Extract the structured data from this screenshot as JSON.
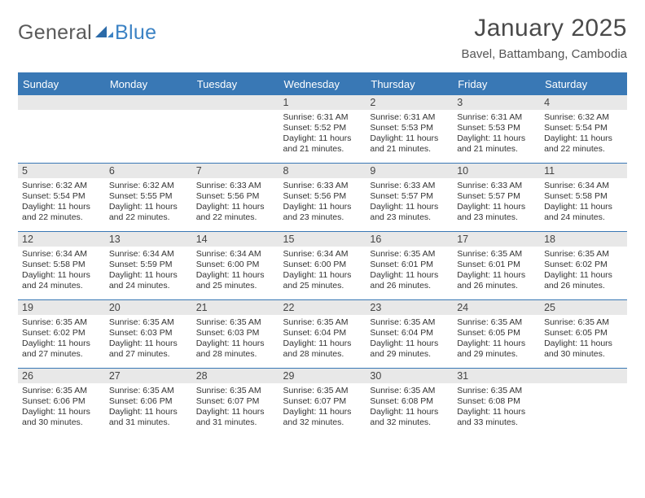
{
  "logo": {
    "word1": "General",
    "word2": "Blue"
  },
  "title": "January 2025",
  "location": "Bavel, Battambang, Cambodia",
  "colors": {
    "header_bg": "#3978b5",
    "daynum_bg": "#e8e8e8",
    "text_light": "#ffffff",
    "text_body": "#333333",
    "logo_gray": "#5a5a5a",
    "logo_blue": "#3b82c4",
    "background": "#ffffff"
  },
  "fonts": {
    "title_size_pt": 22,
    "location_size_pt": 11,
    "header_size_pt": 10,
    "daynum_size_pt": 9.5,
    "body_size_pt": 8
  },
  "weekday_labels": [
    "Sunday",
    "Monday",
    "Tuesday",
    "Wednesday",
    "Thursday",
    "Friday",
    "Saturday"
  ],
  "weeks": [
    [
      {
        "empty": true
      },
      {
        "empty": true
      },
      {
        "empty": true
      },
      {
        "num": "1",
        "sunrise": "Sunrise: 6:31 AM",
        "sunset": "Sunset: 5:52 PM",
        "dl1": "Daylight: 11 hours",
        "dl2": "and 21 minutes."
      },
      {
        "num": "2",
        "sunrise": "Sunrise: 6:31 AM",
        "sunset": "Sunset: 5:53 PM",
        "dl1": "Daylight: 11 hours",
        "dl2": "and 21 minutes."
      },
      {
        "num": "3",
        "sunrise": "Sunrise: 6:31 AM",
        "sunset": "Sunset: 5:53 PM",
        "dl1": "Daylight: 11 hours",
        "dl2": "and 21 minutes."
      },
      {
        "num": "4",
        "sunrise": "Sunrise: 6:32 AM",
        "sunset": "Sunset: 5:54 PM",
        "dl1": "Daylight: 11 hours",
        "dl2": "and 22 minutes."
      }
    ],
    [
      {
        "num": "5",
        "sunrise": "Sunrise: 6:32 AM",
        "sunset": "Sunset: 5:54 PM",
        "dl1": "Daylight: 11 hours",
        "dl2": "and 22 minutes."
      },
      {
        "num": "6",
        "sunrise": "Sunrise: 6:32 AM",
        "sunset": "Sunset: 5:55 PM",
        "dl1": "Daylight: 11 hours",
        "dl2": "and 22 minutes."
      },
      {
        "num": "7",
        "sunrise": "Sunrise: 6:33 AM",
        "sunset": "Sunset: 5:56 PM",
        "dl1": "Daylight: 11 hours",
        "dl2": "and 22 minutes."
      },
      {
        "num": "8",
        "sunrise": "Sunrise: 6:33 AM",
        "sunset": "Sunset: 5:56 PM",
        "dl1": "Daylight: 11 hours",
        "dl2": "and 23 minutes."
      },
      {
        "num": "9",
        "sunrise": "Sunrise: 6:33 AM",
        "sunset": "Sunset: 5:57 PM",
        "dl1": "Daylight: 11 hours",
        "dl2": "and 23 minutes."
      },
      {
        "num": "10",
        "sunrise": "Sunrise: 6:33 AM",
        "sunset": "Sunset: 5:57 PM",
        "dl1": "Daylight: 11 hours",
        "dl2": "and 23 minutes."
      },
      {
        "num": "11",
        "sunrise": "Sunrise: 6:34 AM",
        "sunset": "Sunset: 5:58 PM",
        "dl1": "Daylight: 11 hours",
        "dl2": "and 24 minutes."
      }
    ],
    [
      {
        "num": "12",
        "sunrise": "Sunrise: 6:34 AM",
        "sunset": "Sunset: 5:58 PM",
        "dl1": "Daylight: 11 hours",
        "dl2": "and 24 minutes."
      },
      {
        "num": "13",
        "sunrise": "Sunrise: 6:34 AM",
        "sunset": "Sunset: 5:59 PM",
        "dl1": "Daylight: 11 hours",
        "dl2": "and 24 minutes."
      },
      {
        "num": "14",
        "sunrise": "Sunrise: 6:34 AM",
        "sunset": "Sunset: 6:00 PM",
        "dl1": "Daylight: 11 hours",
        "dl2": "and 25 minutes."
      },
      {
        "num": "15",
        "sunrise": "Sunrise: 6:34 AM",
        "sunset": "Sunset: 6:00 PM",
        "dl1": "Daylight: 11 hours",
        "dl2": "and 25 minutes."
      },
      {
        "num": "16",
        "sunrise": "Sunrise: 6:35 AM",
        "sunset": "Sunset: 6:01 PM",
        "dl1": "Daylight: 11 hours",
        "dl2": "and 26 minutes."
      },
      {
        "num": "17",
        "sunrise": "Sunrise: 6:35 AM",
        "sunset": "Sunset: 6:01 PM",
        "dl1": "Daylight: 11 hours",
        "dl2": "and 26 minutes."
      },
      {
        "num": "18",
        "sunrise": "Sunrise: 6:35 AM",
        "sunset": "Sunset: 6:02 PM",
        "dl1": "Daylight: 11 hours",
        "dl2": "and 26 minutes."
      }
    ],
    [
      {
        "num": "19",
        "sunrise": "Sunrise: 6:35 AM",
        "sunset": "Sunset: 6:02 PM",
        "dl1": "Daylight: 11 hours",
        "dl2": "and 27 minutes."
      },
      {
        "num": "20",
        "sunrise": "Sunrise: 6:35 AM",
        "sunset": "Sunset: 6:03 PM",
        "dl1": "Daylight: 11 hours",
        "dl2": "and 27 minutes."
      },
      {
        "num": "21",
        "sunrise": "Sunrise: 6:35 AM",
        "sunset": "Sunset: 6:03 PM",
        "dl1": "Daylight: 11 hours",
        "dl2": "and 28 minutes."
      },
      {
        "num": "22",
        "sunrise": "Sunrise: 6:35 AM",
        "sunset": "Sunset: 6:04 PM",
        "dl1": "Daylight: 11 hours",
        "dl2": "and 28 minutes."
      },
      {
        "num": "23",
        "sunrise": "Sunrise: 6:35 AM",
        "sunset": "Sunset: 6:04 PM",
        "dl1": "Daylight: 11 hours",
        "dl2": "and 29 minutes."
      },
      {
        "num": "24",
        "sunrise": "Sunrise: 6:35 AM",
        "sunset": "Sunset: 6:05 PM",
        "dl1": "Daylight: 11 hours",
        "dl2": "and 29 minutes."
      },
      {
        "num": "25",
        "sunrise": "Sunrise: 6:35 AM",
        "sunset": "Sunset: 6:05 PM",
        "dl1": "Daylight: 11 hours",
        "dl2": "and 30 minutes."
      }
    ],
    [
      {
        "num": "26",
        "sunrise": "Sunrise: 6:35 AM",
        "sunset": "Sunset: 6:06 PM",
        "dl1": "Daylight: 11 hours",
        "dl2": "and 30 minutes."
      },
      {
        "num": "27",
        "sunrise": "Sunrise: 6:35 AM",
        "sunset": "Sunset: 6:06 PM",
        "dl1": "Daylight: 11 hours",
        "dl2": "and 31 minutes."
      },
      {
        "num": "28",
        "sunrise": "Sunrise: 6:35 AM",
        "sunset": "Sunset: 6:07 PM",
        "dl1": "Daylight: 11 hours",
        "dl2": "and 31 minutes."
      },
      {
        "num": "29",
        "sunrise": "Sunrise: 6:35 AM",
        "sunset": "Sunset: 6:07 PM",
        "dl1": "Daylight: 11 hours",
        "dl2": "and 32 minutes."
      },
      {
        "num": "30",
        "sunrise": "Sunrise: 6:35 AM",
        "sunset": "Sunset: 6:08 PM",
        "dl1": "Daylight: 11 hours",
        "dl2": "and 32 minutes."
      },
      {
        "num": "31",
        "sunrise": "Sunrise: 6:35 AM",
        "sunset": "Sunset: 6:08 PM",
        "dl1": "Daylight: 11 hours",
        "dl2": "and 33 minutes."
      },
      {
        "empty": true
      }
    ]
  ]
}
